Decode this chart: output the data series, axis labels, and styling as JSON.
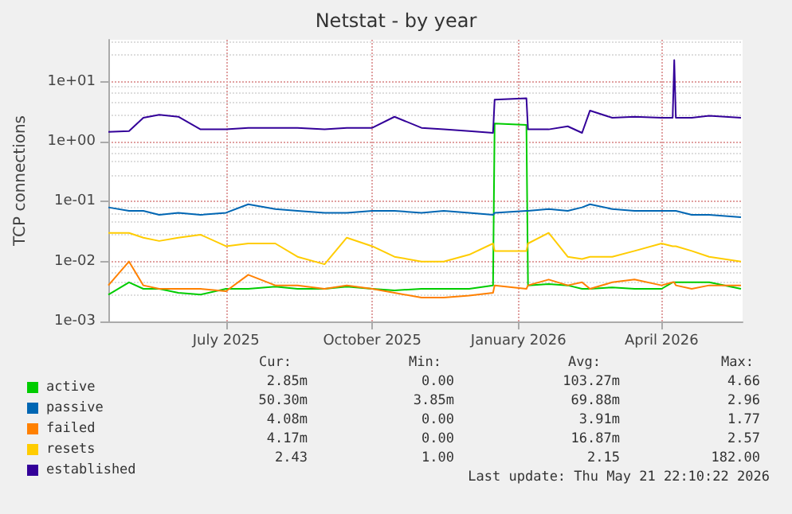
{
  "chart_data": {
    "type": "line",
    "title": "Netstat - by year",
    "ylabel": "TCP connections",
    "x": [
      "2025-04-18",
      "2025-05-01",
      "2025-05-10",
      "2025-05-20",
      "2025-06-01",
      "2025-06-15",
      "2025-07-01",
      "2025-07-15",
      "2025-08-01",
      "2025-08-15",
      "2025-09-01",
      "2025-09-15",
      "2025-10-01",
      "2025-10-15",
      "2025-11-01",
      "2025-11-15",
      "2025-12-01",
      "2025-12-16",
      "2025-12-17",
      "2026-01-06",
      "2026-01-07",
      "2026-01-20",
      "2026-02-01",
      "2026-02-10",
      "2026-02-15",
      "2026-03-01",
      "2026-03-15",
      "2026-04-01",
      "2026-04-08",
      "2026-04-09",
      "2026-04-10",
      "2026-04-20",
      "2026-05-01",
      "2026-05-21"
    ],
    "series": [
      {
        "name": "active",
        "color": "#00cc00",
        "values": [
          0.0028,
          0.0045,
          0.0035,
          0.0035,
          0.003,
          0.0028,
          0.0035,
          0.0035,
          0.0038,
          0.0035,
          0.0035,
          0.0038,
          0.0035,
          0.0033,
          0.0035,
          0.0035,
          0.0035,
          0.004,
          2.0,
          1.9,
          0.004,
          0.0042,
          0.004,
          0.0035,
          0.0035,
          0.0037,
          0.0035,
          0.0035,
          0.0045,
          0.0045,
          0.0045,
          0.0045,
          0.0045,
          0.0035
        ]
      },
      {
        "name": "passive",
        "color": "#0066b3",
        "values": [
          0.08,
          0.07,
          0.07,
          0.06,
          0.065,
          0.06,
          0.065,
          0.09,
          0.075,
          0.07,
          0.065,
          0.065,
          0.07,
          0.07,
          0.065,
          0.07,
          0.065,
          0.06,
          0.065,
          0.07,
          0.07,
          0.075,
          0.07,
          0.08,
          0.09,
          0.075,
          0.07,
          0.07,
          0.07,
          0.07,
          0.07,
          0.06,
          0.06,
          0.055
        ]
      },
      {
        "name": "failed",
        "color": "#ff8000",
        "values": [
          0.004,
          0.01,
          0.004,
          0.0035,
          0.0035,
          0.0035,
          0.0032,
          0.006,
          0.004,
          0.004,
          0.0035,
          0.004,
          0.0035,
          0.003,
          0.0025,
          0.0025,
          0.0027,
          0.003,
          0.004,
          0.0035,
          0.004,
          0.005,
          0.004,
          0.0045,
          0.0035,
          0.0045,
          0.005,
          0.004,
          0.0045,
          0.0045,
          0.004,
          0.0035,
          0.004,
          0.004
        ]
      },
      {
        "name": "resets",
        "color": "#ffcc00",
        "values": [
          0.03,
          0.03,
          0.025,
          0.022,
          0.025,
          0.028,
          0.018,
          0.02,
          0.02,
          0.012,
          0.009,
          0.025,
          0.018,
          0.012,
          0.01,
          0.01,
          0.013,
          0.02,
          0.015,
          0.015,
          0.02,
          0.03,
          0.012,
          0.011,
          0.012,
          0.012,
          0.015,
          0.02,
          0.018,
          0.018,
          0.018,
          0.015,
          0.012,
          0.01
        ]
      },
      {
        "name": "established",
        "color": "#330099",
        "values": [
          1.45,
          1.5,
          2.5,
          2.8,
          2.6,
          1.6,
          1.6,
          1.7,
          1.7,
          1.7,
          1.6,
          1.7,
          1.7,
          2.6,
          1.7,
          1.6,
          1.5,
          1.4,
          5.0,
          5.3,
          1.6,
          1.6,
          1.8,
          1.4,
          3.3,
          2.5,
          2.6,
          2.5,
          2.5,
          23,
          2.5,
          2.5,
          2.7,
          2.5
        ]
      }
    ],
    "log": "y",
    "ylim": [
      0.001,
      50
    ],
    "yticks": [
      {
        "value": 0.001,
        "label": "1e-03"
      },
      {
        "value": 0.01,
        "label": "1e-02"
      },
      {
        "value": 0.1,
        "label": "1e-01"
      },
      {
        "value": 1,
        "label": "1e+00"
      },
      {
        "value": 10,
        "label": "1e+01"
      }
    ],
    "xlim": [
      "2025-04-18",
      "2026-05-22"
    ],
    "xticks": [
      {
        "value": "2025-07-01",
        "label": "July 2025"
      },
      {
        "value": "2025-10-01",
        "label": "October 2025"
      },
      {
        "value": "2026-01-01",
        "label": "January 2026"
      },
      {
        "value": "2026-04-01",
        "label": "April 2026"
      }
    ],
    "grid": true,
    "legend": "bottom left",
    "marker": "none",
    "line_style": "solid",
    "annotations": [
      "Cur:",
      "Min:",
      "Avg:",
      "Max:",
      "2.85m",
      "0.00",
      "103.27m",
      "4.66",
      "50.30m",
      "3.85m",
      "69.88m",
      "2.96",
      "4.08m",
      "0.00",
      "3.91m",
      "1.77",
      "4.17m",
      "0.00",
      "16.87m",
      "2.57",
      "2.43",
      "1.00",
      "2.15",
      "182.00",
      "Last update: Thu May 21 22:10:22 2026"
    ]
  }
}
